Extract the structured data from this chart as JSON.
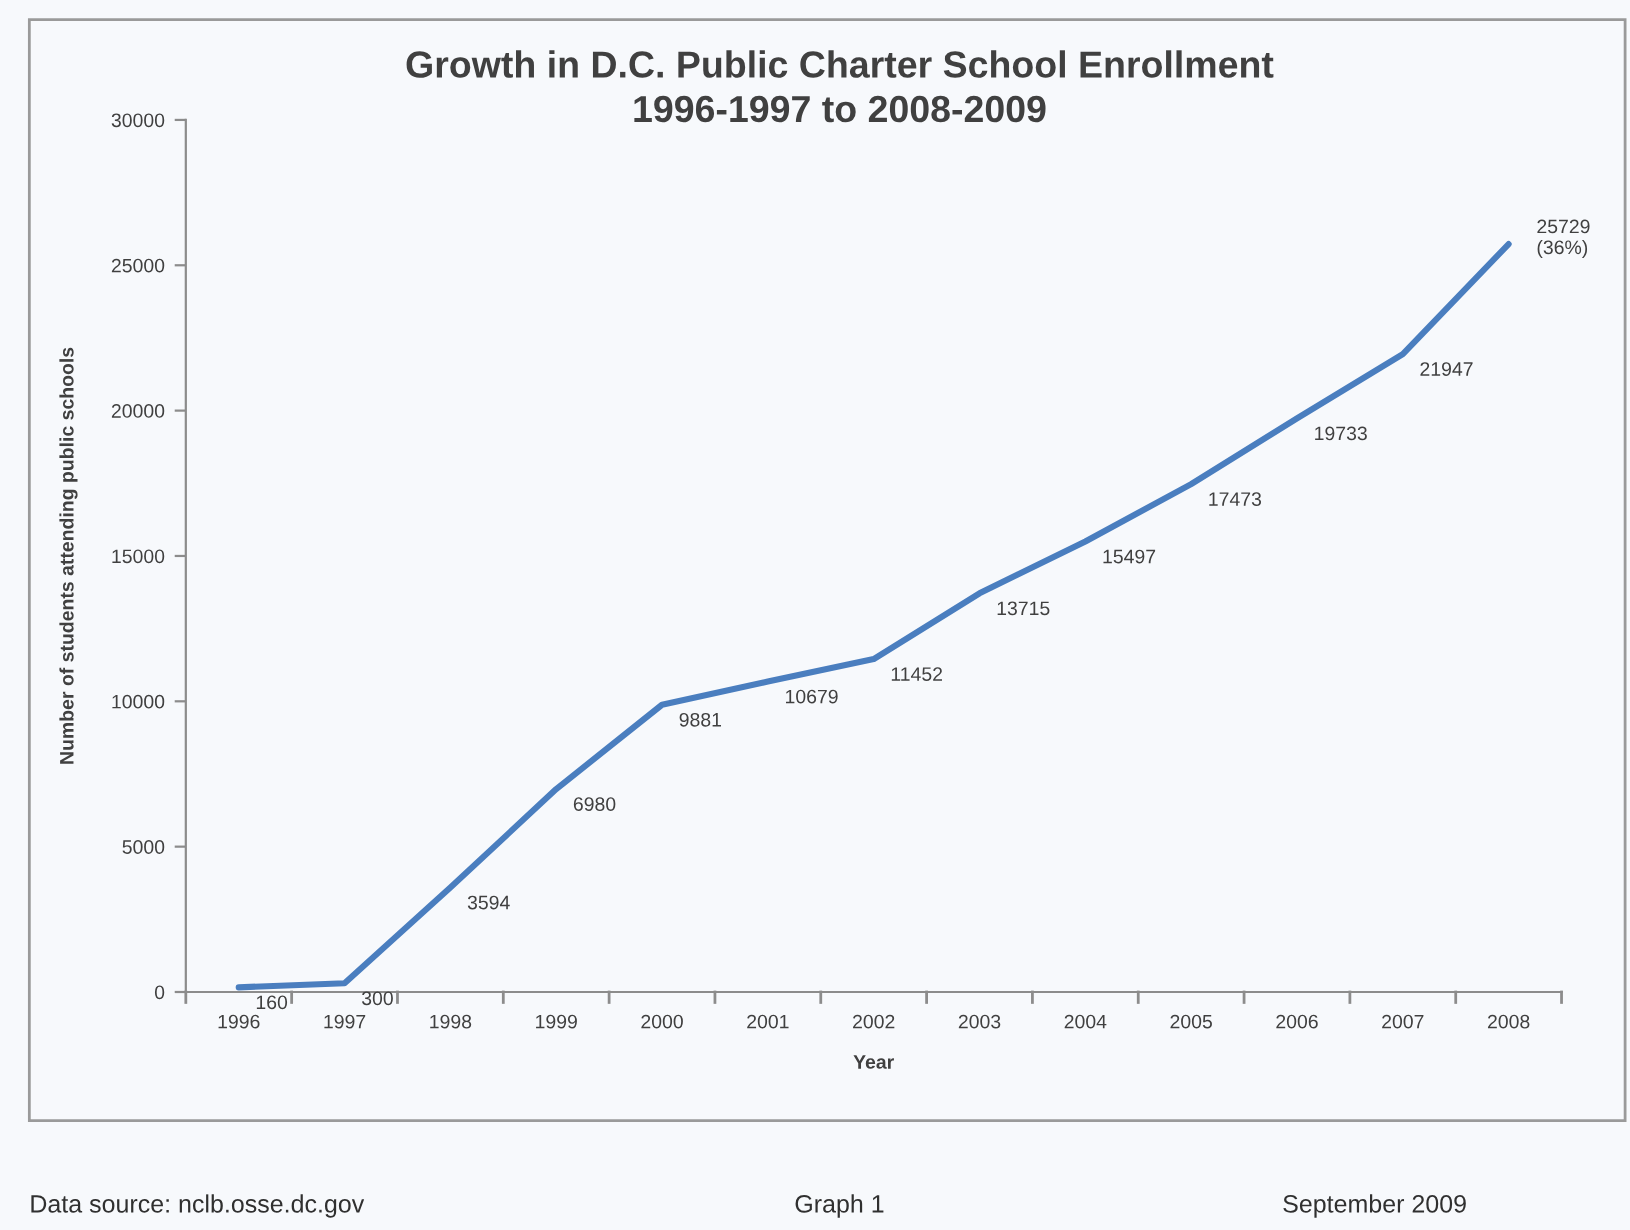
{
  "chart_data": {
    "type": "line",
    "title": "Growth in D.C. Public Charter School Enrollment\n1996-1997 to 2008-2009",
    "xlabel": "Year",
    "ylabel": "Number of students attending public schools",
    "categories": [
      "1996",
      "1997",
      "1998",
      "1999",
      "2000",
      "2001",
      "2002",
      "2003",
      "2004",
      "2005",
      "2006",
      "2007",
      "2008"
    ],
    "series": [
      {
        "color": "#4a7ebf",
        "values": [
          160,
          300,
          3594,
          6980,
          9881,
          10679,
          11452,
          13715,
          15497,
          17473,
          19733,
          21947,
          25729
        ],
        "value_labels": [
          "160",
          "300",
          "3594",
          "6980",
          "9881",
          "10679",
          "11452",
          "13715",
          "15497",
          "17473",
          "19733",
          "21947",
          "25729\n(36%)"
        ]
      }
    ],
    "ylim": [
      0,
      30000
    ],
    "yticks": [
      0,
      5000,
      10000,
      15000,
      20000,
      25000,
      30000
    ],
    "annotations": [
      "Data source: nclb.osse.dc.gov",
      "Graph 1",
      "September 2009"
    ]
  }
}
